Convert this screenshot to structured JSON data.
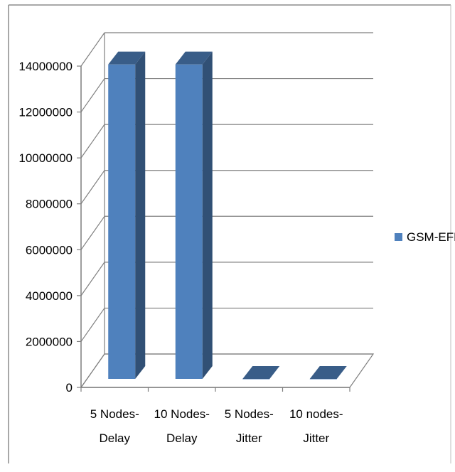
{
  "chart_data": {
    "type": "bar",
    "style": "3d-clustered-column",
    "categories": [
      "5 Nodes-Delay",
      "10 Nodes-Delay",
      "5 Nodes-Jitter",
      "10 nodes-Jitter"
    ],
    "category_lines": [
      [
        "5 Nodes-",
        "Delay"
      ],
      [
        "10 Nodes-",
        "Delay"
      ],
      [
        "5 Nodes-",
        "Jitter"
      ],
      [
        "10 nodes-",
        "Jitter"
      ]
    ],
    "series": [
      {
        "name": "GSM-EFR",
        "values": [
          13700000,
          13700000,
          0,
          0
        ],
        "color": "#4F81BD"
      }
    ],
    "yticks": [
      "0",
      "2000000",
      "4000000",
      "6000000",
      "8000000",
      "10000000",
      "12000000",
      "14000000"
    ],
    "ylim": [
      0,
      14000000
    ],
    "grid": true,
    "legend_position": "right"
  }
}
